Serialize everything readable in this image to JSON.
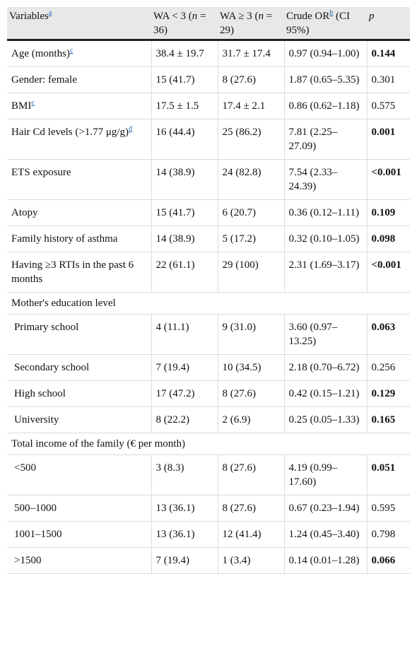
{
  "header": {
    "variables": "Variables",
    "variables_fn": "a",
    "col2_pre": "WA < 3 (",
    "col2_n": "n",
    "col2_post": " = 36)",
    "col3_pre": "WA ≥ 3 (",
    "col3_n": "n",
    "col3_post": " = 29)",
    "col4_pre": "Crude OR",
    "col4_fn": "b",
    "col4_post": " (CI 95%)",
    "col5": "p"
  },
  "rows": [
    {
      "type": "data",
      "label": "Age (months)",
      "fn": "c",
      "wa_lt3": "38.4 ± 19.7",
      "wa_ge3": "31.7 ± 17.4",
      "or": "0.97 (0.94–1.00)",
      "p": "0.144",
      "bold": true
    },
    {
      "type": "data",
      "label": "Gender: female",
      "fn": "",
      "wa_lt3": "15 (41.7)",
      "wa_ge3": "8 (27.6)",
      "or": "1.87 (0.65–5.35)",
      "p": "0.301",
      "bold": false
    },
    {
      "type": "data",
      "label": "BMI",
      "fn": "c",
      "wa_lt3": "17.5 ± 1.5",
      "wa_ge3": "17.4 ± 2.1",
      "or": "0.86 (0.62–1.18)",
      "p": "0.575",
      "bold": false
    },
    {
      "type": "data",
      "label": "Hair Cd levels (>1.77 μg/g)",
      "fn": "d",
      "wa_lt3": "16 (44.4)",
      "wa_ge3": "25 (86.2)",
      "or": "7.81 (2.25–27.09)",
      "p": "0.001",
      "bold": true
    },
    {
      "type": "data",
      "label": "ETS exposure",
      "fn": "",
      "wa_lt3": "14 (38.9)",
      "wa_ge3": "24 (82.8)",
      "or": "7.54 (2.33–24.39)",
      "p": "<0.001",
      "bold": true
    },
    {
      "type": "data",
      "label": "Atopy",
      "fn": "",
      "wa_lt3": "15 (41.7)",
      "wa_ge3": "6 (20.7)",
      "or": "0.36 (0.12–1.11)",
      "p": "0.109",
      "bold": true
    },
    {
      "type": "data",
      "label": "Family history of asthma",
      "fn": "",
      "wa_lt3": "14 (38.9)",
      "wa_ge3": "5 (17.2)",
      "or": "0.32 (0.10–1.05)",
      "p": "0.098",
      "bold": true
    },
    {
      "type": "data",
      "label": "Having ≥3 RTIs in the past 6 months",
      "fn": "",
      "wa_lt3": "22 (61.1)",
      "wa_ge3": "29 (100)",
      "or": "2.31 (1.69–3.17)",
      "p": "<0.001",
      "bold": true
    },
    {
      "type": "group",
      "label": "Mother's education level"
    },
    {
      "type": "sub",
      "label": "Primary school",
      "fn": "",
      "wa_lt3": "4 (11.1)",
      "wa_ge3": "9 (31.0)",
      "or": "3.60 (0.97–13.25)",
      "p": "0.063",
      "bold": true
    },
    {
      "type": "sub",
      "label": "Secondary school",
      "fn": "",
      "wa_lt3": "7 (19.4)",
      "wa_ge3": "10 (34.5)",
      "or": "2.18 (0.70–6.72)",
      "p": "0.256",
      "bold": false
    },
    {
      "type": "sub",
      "label": "High school",
      "fn": "",
      "wa_lt3": "17 (47.2)",
      "wa_ge3": "8 (27.6)",
      "or": "0.42 (0.15–1.21)",
      "p": "0.129",
      "bold": true
    },
    {
      "type": "sub",
      "label": "University",
      "fn": "",
      "wa_lt3": "8 (22.2)",
      "wa_ge3": "2 (6.9)",
      "or": "0.25 (0.05–1.33)",
      "p": "0.165",
      "bold": true
    },
    {
      "type": "group",
      "label": "Total income of the family (€ per month)"
    },
    {
      "type": "sub",
      "label": "<500",
      "fn": "",
      "wa_lt3": "3 (8.3)",
      "wa_ge3": "8 (27.6)",
      "or": "4.19 (0.99–17.60)",
      "p": "0.051",
      "bold": true
    },
    {
      "type": "sub",
      "label": "500–1000",
      "fn": "",
      "wa_lt3": "13 (36.1)",
      "wa_ge3": "8 (27.6)",
      "or": "0.67 (0.23–1.94)",
      "p": "0.595",
      "bold": false
    },
    {
      "type": "sub",
      "label": "1001–1500",
      "fn": "",
      "wa_lt3": "13 (36.1)",
      "wa_ge3": "12 (41.4)",
      "or": "1.24 (0.45–3.40)",
      "p": "0.798",
      "bold": false
    },
    {
      "type": "sub",
      "label": ">1500",
      "fn": "",
      "wa_lt3": "7 (19.4)",
      "wa_ge3": "1 (3.4)",
      "or": "0.14 (0.01–1.28)",
      "p": "0.066",
      "bold": true
    }
  ]
}
